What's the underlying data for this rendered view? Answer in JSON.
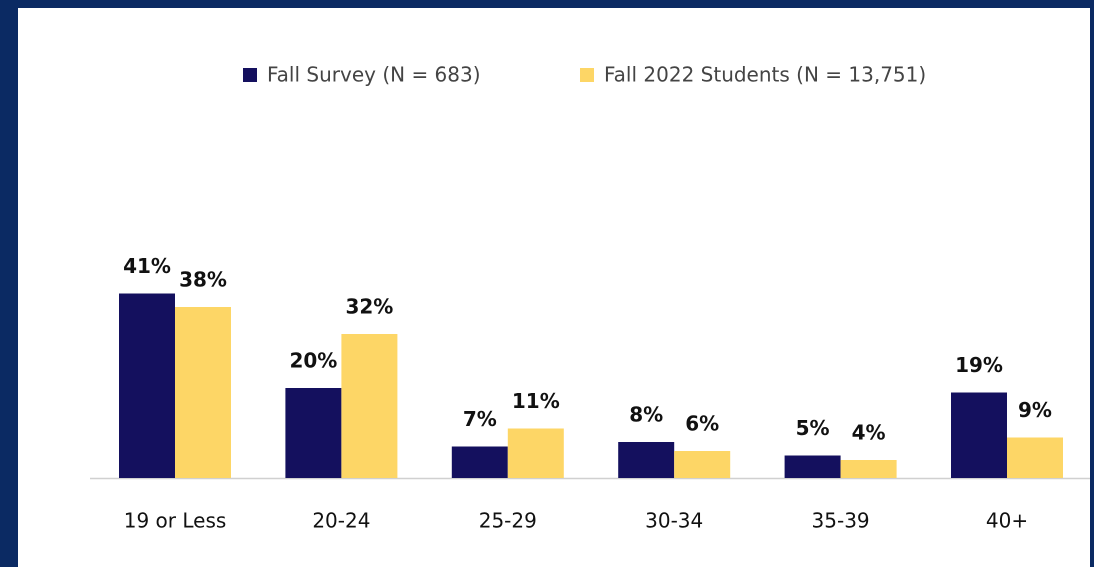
{
  "chart_data": {
    "type": "bar",
    "categories": [
      "19 or Less",
      "20-24",
      "25-29",
      "30-34",
      "35-39",
      "40+"
    ],
    "series": [
      {
        "name": "Fall Survey (N = 683)",
        "color": "#14105e",
        "values": [
          41,
          20,
          7,
          8,
          5,
          19
        ],
        "value_labels": [
          "41%",
          "20%",
          "7%",
          "8%",
          "5%",
          "19%"
        ]
      },
      {
        "name": "Fall 2022 Students (N = 13,751)",
        "color": "#fdd666",
        "values": [
          38,
          32,
          11,
          6,
          4,
          9
        ],
        "value_labels": [
          "38%",
          "32%",
          "11%",
          "6%",
          "4%",
          "9%"
        ]
      }
    ]
  }
}
